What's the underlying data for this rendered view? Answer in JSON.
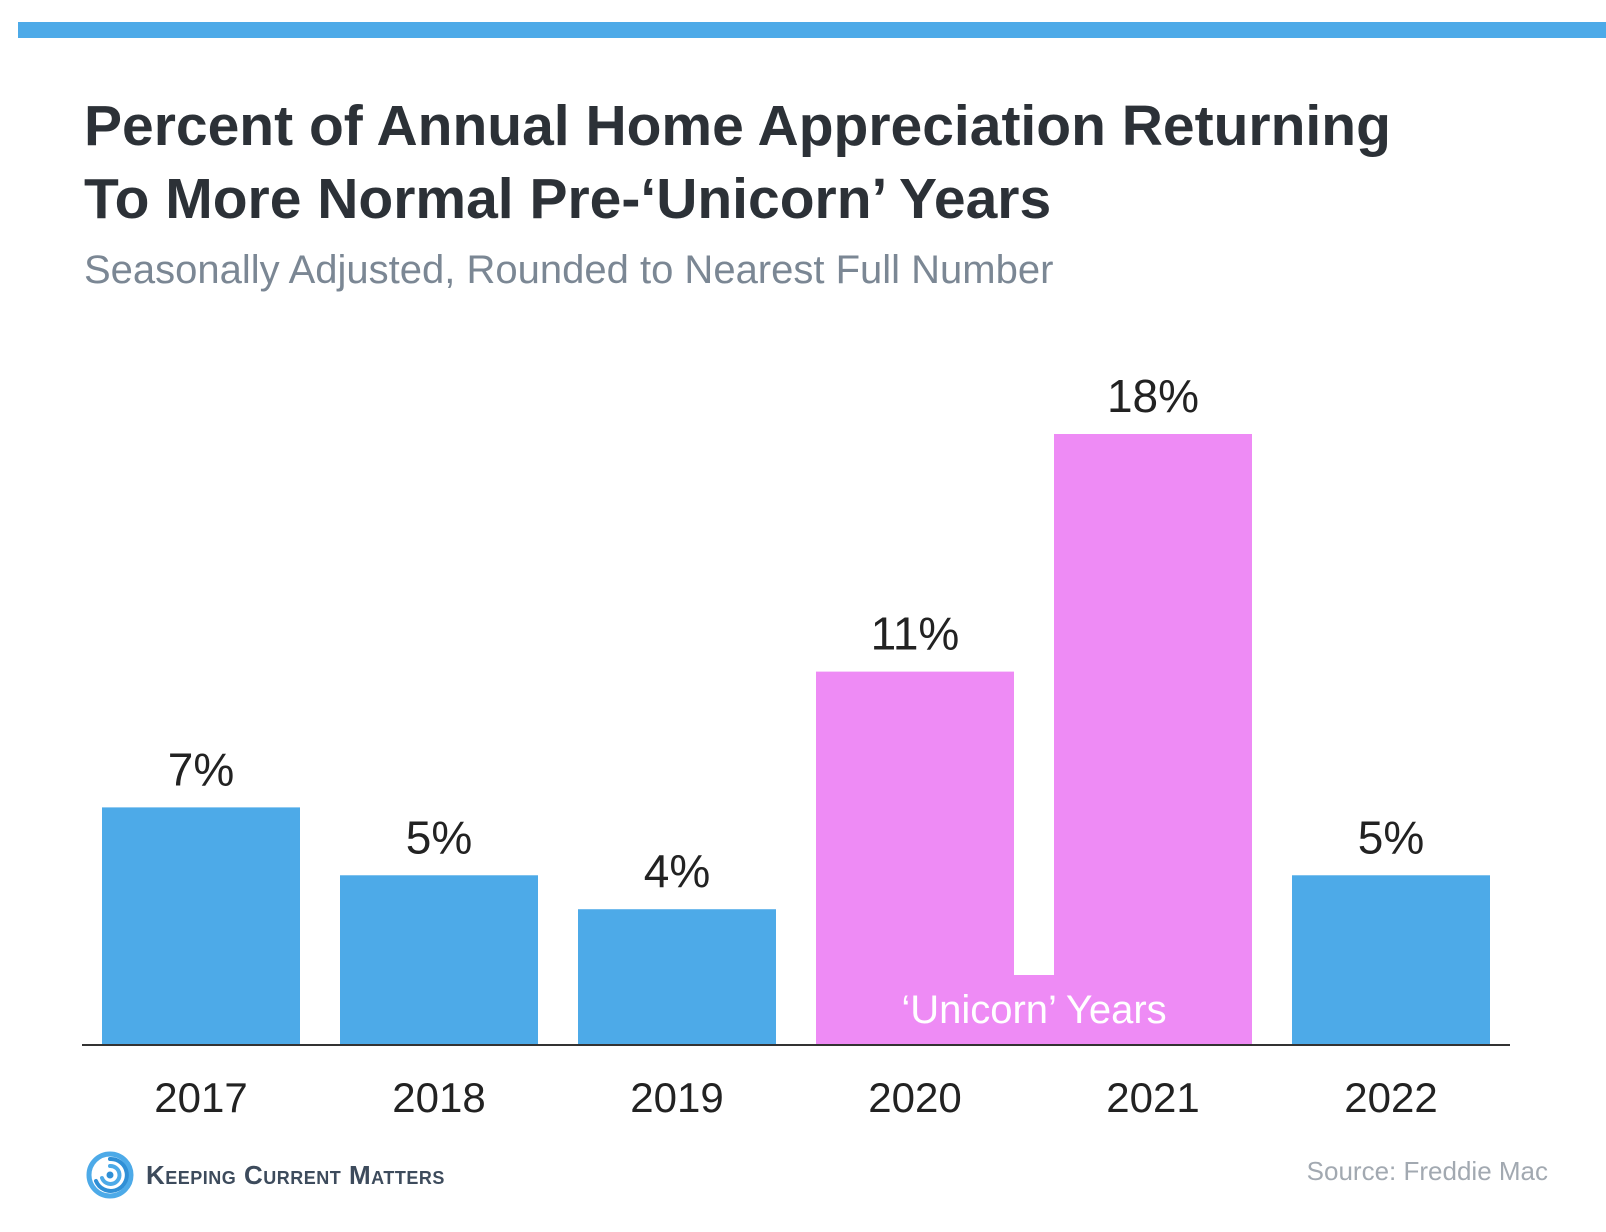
{
  "header": {
    "title_line1": "Percent of Annual Home Appreciation Returning",
    "title_line2": "To More Normal Pre-‘Unicorn’ Years",
    "subtitle": "Seasonally Adjusted, Rounded to Nearest Full Number"
  },
  "colors": {
    "accent": "#4daae8",
    "bar_normal": "#4daae8",
    "bar_unicorn": "#ee8bf5",
    "title": "#2c3137",
    "subtitle": "#7b8794"
  },
  "chart_data": {
    "type": "bar",
    "title": "Percent of Annual Home Appreciation Returning To More Normal Pre-‘Unicorn’ Years",
    "subtitle": "Seasonally Adjusted, Rounded to Nearest Full Number",
    "categories": [
      "2017",
      "2018",
      "2019",
      "2020",
      "2021",
      "2022"
    ],
    "values": [
      7,
      5,
      4,
      11,
      18,
      5
    ],
    "value_labels": [
      "7%",
      "5%",
      "4%",
      "11%",
      "18%",
      "5%"
    ],
    "highlight": [
      false,
      false,
      false,
      true,
      true,
      false
    ],
    "highlight_label": "‘Unicorn’ Years",
    "ylim": [
      0,
      18
    ],
    "grid": false,
    "legend": "none"
  },
  "footer": {
    "brand": "Keeping Current Matters",
    "source": "Source: Freddie Mac"
  }
}
